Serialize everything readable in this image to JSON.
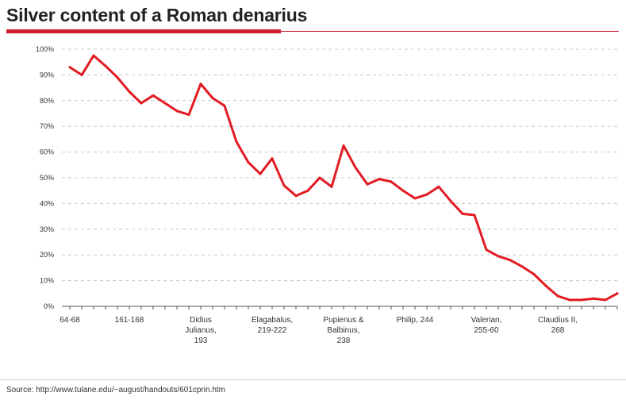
{
  "title": "Silver content of a Roman denarius",
  "source": "Source: http://www.tulane.edu/~august/handouts/601cprin.htm",
  "colors": {
    "line": "#e21b22",
    "title_rule": "#cf1f2d",
    "grid": "#c8c8c8"
  },
  "chart_data": {
    "type": "line",
    "title": "Silver content of a Roman denarius",
    "xlabel": "",
    "ylabel": "",
    "ylim": [
      0,
      100
    ],
    "y_ticks": [
      0,
      10,
      20,
      30,
      40,
      50,
      60,
      70,
      80,
      90,
      100
    ],
    "y_tick_labels": [
      "0%",
      "10%",
      "20%",
      "30%",
      "40%",
      "50%",
      "60%",
      "70%",
      "80%",
      "90%",
      "100%"
    ],
    "grid": "horizontal dashed",
    "x_category_labels": [
      {
        "index": 0,
        "lines": [
          "64-68"
        ]
      },
      {
        "index": 5,
        "lines": [
          "161-168"
        ]
      },
      {
        "index": 11,
        "lines": [
          "Didius",
          "Julianus,",
          "193"
        ]
      },
      {
        "index": 17,
        "lines": [
          "Elagabalus,",
          "219-222"
        ]
      },
      {
        "index": 23,
        "lines": [
          "Pupienus &",
          "Balbinus,",
          "238"
        ]
      },
      {
        "index": 29,
        "lines": [
          "Philip, 244"
        ]
      },
      {
        "index": 35,
        "lines": [
          "Valerian,",
          "255-60"
        ]
      },
      {
        "index": 41,
        "lines": [
          "Claudius II,",
          "268"
        ]
      }
    ],
    "series": [
      {
        "values": [
          93,
          90,
          97.5,
          93.5,
          89,
          83.5,
          79,
          82,
          79,
          76,
          74.5,
          86.5,
          81,
          78,
          64,
          56,
          51.5,
          57.5,
          47,
          43,
          45,
          50,
          46.5,
          62.5,
          54,
          47.5,
          49.5,
          48.5,
          45,
          42,
          43.5,
          46.5,
          41,
          36,
          35.5,
          22,
          19.5,
          18,
          15.5,
          12.5,
          8,
          4,
          2.5,
          2.5,
          3,
          2.5,
          5
        ]
      }
    ]
  }
}
